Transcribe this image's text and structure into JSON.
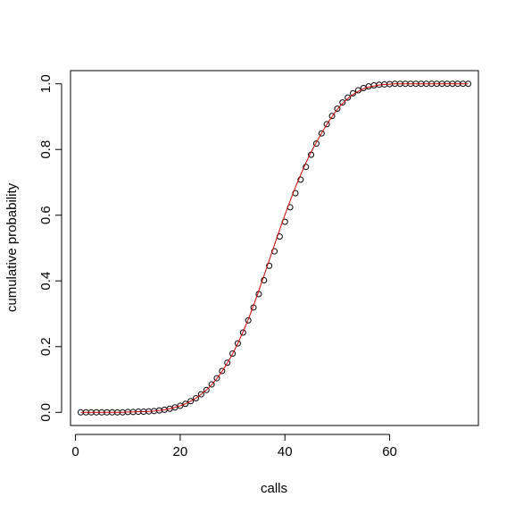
{
  "chart_data": {
    "type": "scatter",
    "title": "",
    "xlabel": "calls",
    "ylabel": "cumulative probability",
    "xlim": [
      -0.95,
      76.95
    ],
    "ylim": [
      -0.04,
      1.04
    ],
    "x_ticks": [
      0,
      20,
      40,
      60
    ],
    "x_tick_labels": [
      "0",
      "20",
      "40",
      "60"
    ],
    "y_ticks": [
      0.0,
      0.2,
      0.4,
      0.6,
      0.8,
      1.0
    ],
    "y_tick_labels": [
      "0.0",
      "0.2",
      "0.4",
      "0.6",
      "0.8",
      "1.0"
    ],
    "grid": false,
    "colors": {
      "points": "#000000",
      "line": "#cc0000",
      "axis": "#000000"
    },
    "series": [
      {
        "kind": "points",
        "x": [
          1,
          2,
          3,
          4,
          5,
          6,
          7,
          8,
          9,
          10,
          11,
          12,
          13,
          14,
          15,
          16,
          17,
          18,
          19,
          20,
          21,
          22,
          23,
          24,
          25,
          26,
          27,
          28,
          29,
          30,
          31,
          32,
          33,
          34,
          35,
          36,
          37,
          38,
          39,
          40,
          41,
          42,
          43,
          44,
          45,
          46,
          47,
          48,
          49,
          50,
          51,
          52,
          53,
          54,
          55,
          56,
          57,
          58,
          59,
          60,
          61,
          62,
          63,
          64,
          65,
          66,
          67,
          68,
          69,
          70,
          71,
          72,
          73,
          74,
          75
        ],
        "y": [
          0,
          0,
          0,
          0,
          0,
          0,
          0,
          0,
          0,
          0.001,
          0.001,
          0.002,
          0.002,
          0.003,
          0.004,
          0.006,
          0.008,
          0.011,
          0.015,
          0.02,
          0.026,
          0.034,
          0.043,
          0.055,
          0.068,
          0.085,
          0.104,
          0.126,
          0.151,
          0.179,
          0.21,
          0.243,
          0.28,
          0.319,
          0.36,
          0.402,
          0.446,
          0.49,
          0.535,
          0.58,
          0.624,
          0.667,
          0.708,
          0.747,
          0.784,
          0.818,
          0.849,
          0.877,
          0.902,
          0.924,
          0.943,
          0.958,
          0.971,
          0.98,
          0.987,
          0.992,
          0.995,
          0.997,
          0.998,
          0.999,
          1,
          1,
          1,
          1,
          1,
          1,
          1,
          1,
          1,
          1,
          1,
          1,
          1,
          1,
          1
        ]
      },
      {
        "kind": "line",
        "x": [
          1,
          2,
          3,
          4,
          5,
          6,
          7,
          8,
          9,
          10,
          11,
          12,
          13,
          14,
          15,
          16,
          17,
          18,
          19,
          20,
          21,
          22,
          23,
          24,
          25,
          26,
          27,
          28,
          29,
          30,
          31,
          32,
          33,
          34,
          35,
          36,
          37,
          38,
          39,
          40,
          41,
          42,
          43,
          44,
          45,
          46,
          47,
          48,
          49,
          50,
          51,
          52,
          53,
          54,
          55,
          56,
          57,
          58,
          59,
          60,
          61,
          62,
          63,
          64,
          65,
          66,
          67,
          68,
          69,
          70,
          71,
          72,
          73,
          74,
          75
        ],
        "y": [
          0,
          0,
          0,
          0,
          0,
          0,
          0,
          0,
          0,
          0.001,
          0.001,
          0.002,
          0.002,
          0.003,
          0.004,
          0.006,
          0.008,
          0.011,
          0.015,
          0.02,
          0.026,
          0.034,
          0.043,
          0.055,
          0.068,
          0.084,
          0.103,
          0.125,
          0.15,
          0.178,
          0.21,
          0.245,
          0.283,
          0.325,
          0.37,
          0.416,
          0.463,
          0.51,
          0.556,
          0.601,
          0.644,
          0.685,
          0.723,
          0.759,
          0.792,
          0.822,
          0.85,
          0.876,
          0.9,
          0.922,
          0.94,
          0.955,
          0.967,
          0.977,
          0.985,
          0.99,
          0.993,
          0.996,
          0.998,
          0.999,
          1,
          1,
          1,
          1,
          1,
          1,
          1,
          1,
          1,
          1,
          1,
          1,
          1,
          1,
          1
        ]
      }
    ]
  }
}
